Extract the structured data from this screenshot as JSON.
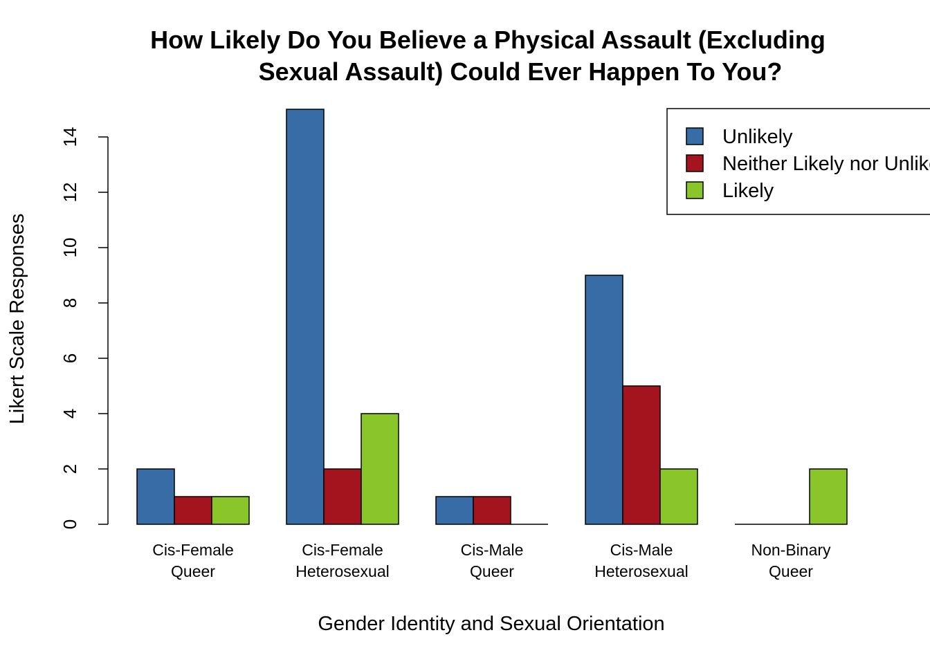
{
  "chart_data": {
    "type": "bar",
    "title_lines": [
      "How Likely Do You Believe a Physical Assault (Excluding",
      "Sexual Assault) Could Ever Happen To You?"
    ],
    "xlabel": "Gender Identity and Sexual Orientation",
    "ylabel": "Likert Scale Responses",
    "categories": [
      [
        "Cis-Female",
        "Queer"
      ],
      [
        "Cis-Female",
        "Heterosexual"
      ],
      [
        "Cis-Male",
        "Queer"
      ],
      [
        "Cis-Male",
        "Heterosexual"
      ],
      [
        "Non-Binary",
        "Queer"
      ]
    ],
    "series": [
      {
        "name": "Unlikely",
        "color": "#386CA6",
        "values": [
          2,
          15,
          1,
          9,
          0
        ]
      },
      {
        "name": "Neither Likely nor Unlikely",
        "color": "#A3141E",
        "values": [
          1,
          2,
          1,
          5,
          0
        ]
      },
      {
        "name": "Likely",
        "color": "#8AC62A",
        "values": [
          1,
          4,
          0,
          2,
          2
        ]
      }
    ],
    "ylim": [
      0,
      15
    ],
    "yticks": [
      0,
      2,
      4,
      6,
      8,
      10,
      12,
      14
    ],
    "grid": false,
    "legend_position": "top-right"
  }
}
